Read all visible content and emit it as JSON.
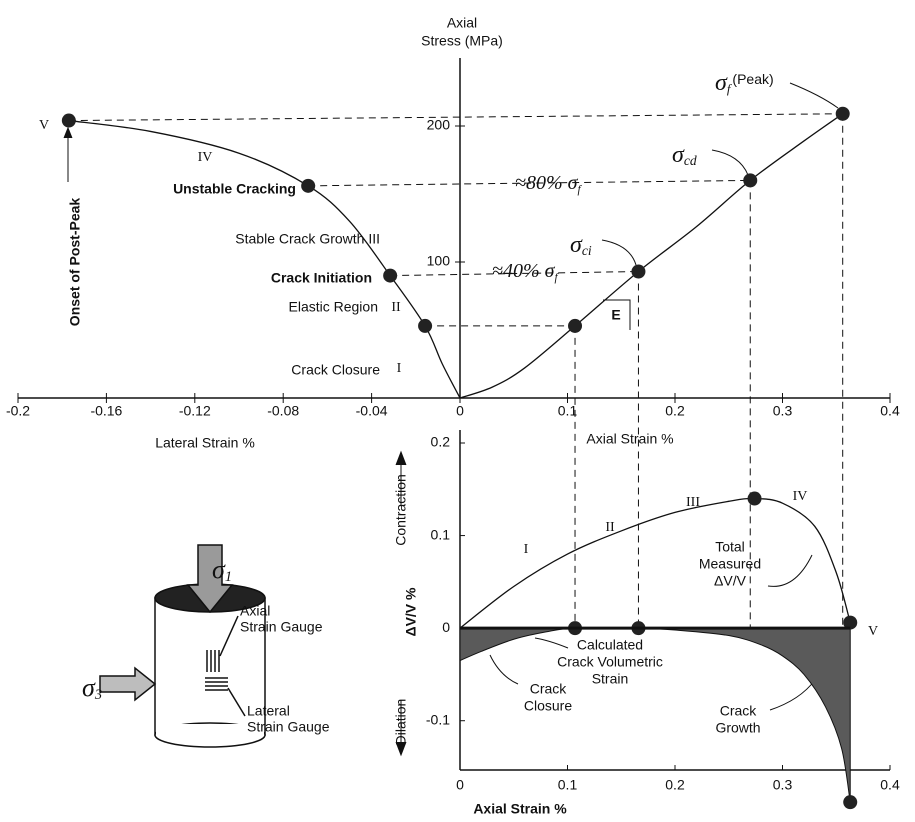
{
  "chart_data": [
    {
      "type": "line",
      "y_label_lines": [
        "Axial",
        "Stress (MPa)"
      ],
      "x_label_lateral": "Lateral Strain %",
      "x_label": "Axial Strain %",
      "xlim_lateral": [
        -0.2,
        0
      ],
      "xticks_lateral": [
        -0.2,
        -0.16,
        -0.12,
        -0.08,
        -0.04
      ],
      "xlim": [
        0,
        0.4
      ],
      "xticks": [
        0,
        0.1,
        0.2,
        0.3,
        0.4
      ],
      "ylim": [
        0,
        250
      ],
      "yticks": [
        100,
        200
      ],
      "series": [
        {
          "axis": "lateral",
          "style": "line",
          "color": "#111111",
          "x": [
            0,
            -0.008,
            -0.0158,
            -0.0316,
            -0.05,
            -0.0687,
            -0.1,
            -0.14,
            -0.177
          ],
          "values": [
            0,
            25,
            53,
            90,
            130,
            156,
            180,
            196,
            204
          ]
        },
        {
          "axis": "lateral",
          "style": "markers",
          "color": "#222222",
          "x": [
            -0.0158,
            -0.0316,
            -0.0687,
            -0.177
          ],
          "values": [
            53,
            90,
            156,
            204
          ]
        },
        {
          "axis": "axial",
          "style": "line",
          "color": "#111111",
          "x": [
            0,
            0.03,
            0.06,
            0.107,
            0.166,
            0.22,
            0.27,
            0.32,
            0.356
          ],
          "values": [
            0,
            8,
            22,
            53,
            93,
            126,
            160,
            189,
            209
          ]
        },
        {
          "axis": "axial",
          "style": "markers",
          "color": "#222222",
          "x": [
            0.107,
            0.166,
            0.27,
            0.356
          ],
          "values": [
            53,
            93,
            160,
            209
          ]
        }
      ],
      "annotations": [
        {
          "text": "V"
        },
        {
          "text": "IV"
        },
        {
          "text": "Unstable Cracking"
        },
        {
          "text": "Stable Crack Growth III"
        },
        {
          "text": "Crack Initiation"
        },
        {
          "text": "Elastic Region"
        },
        {
          "text": "II"
        },
        {
          "text": "Crack Closure"
        },
        {
          "text": "I"
        },
        {
          "text": "Onset of Post-Peak"
        },
        {
          "text": "σ",
          "sub": "f",
          "suffix": "(Peak)"
        },
        {
          "text": "σ",
          "sub": "cd"
        },
        {
          "text": "σ",
          "sub": "ci"
        },
        {
          "text": "≈80% σ",
          "sub": "f"
        },
        {
          "text": "≈40% σ",
          "sub": "f"
        },
        {
          "text": "E"
        }
      ]
    },
    {
      "type": "area",
      "x_label": "Axial Strain %",
      "xlim": [
        0,
        0.4
      ],
      "xticks": [
        0,
        0.1,
        0.2,
        0.3,
        0.4
      ],
      "ylim": [
        -0.15,
        0.2
      ],
      "yticks": [
        -0.1,
        0,
        0.1,
        0.2
      ],
      "series": [
        {
          "style": "line",
          "color": "#111111",
          "x": [
            0,
            0.05,
            0.1,
            0.15,
            0.2,
            0.25,
            0.274,
            0.3,
            0.33,
            0.35,
            0.363
          ],
          "values": [
            0,
            0.045,
            0.08,
            0.105,
            0.125,
            0.137,
            0.14,
            0.135,
            0.11,
            0.06,
            0.006
          ]
        },
        {
          "style": "area",
          "color": "#5a5a5a",
          "x": [
            0,
            0.02,
            0.05,
            0.08,
            0.107,
            0.166,
            0.2,
            0.25,
            0.28,
            0.3,
            0.32,
            0.34,
            0.355,
            0.363
          ],
          "values": [
            -0.035,
            -0.025,
            -0.012,
            -0.004,
            0,
            0,
            -0.002,
            -0.008,
            -0.018,
            -0.03,
            -0.05,
            -0.085,
            -0.13,
            -0.188
          ]
        },
        {
          "style": "markers",
          "color": "#222222",
          "x": [
            0.107,
            0.166,
            0.274,
            0.363,
            0.363
          ],
          "values": [
            0,
            0,
            0.14,
            0.006,
            -0.188
          ]
        }
      ],
      "annotations": [
        {
          "text": "Contraction"
        },
        {
          "text": "Dilation"
        },
        {
          "text": "ΔV/V %"
        },
        {
          "text": "I"
        },
        {
          "text": "II"
        },
        {
          "text": "III"
        },
        {
          "text": "IV"
        },
        {
          "lines": [
            "Total",
            "Measured",
            "ΔV/V"
          ]
        },
        {
          "text": "V"
        },
        {
          "lines": [
            "Calculated",
            "Crack Volumetric",
            "Strain"
          ]
        },
        {
          "lines": [
            "Crack",
            "Closure"
          ]
        },
        {
          "lines": [
            "Crack",
            "Growth"
          ]
        }
      ]
    }
  ],
  "specimen": {
    "labels": [
      {
        "text": "σ",
        "sub": "1"
      },
      {
        "text": "σ",
        "sub": "3"
      },
      {
        "lines": [
          "Axial",
          "Strain Gauge"
        ]
      },
      {
        "lines": [
          "Lateral",
          "Strain Gauge"
        ]
      }
    ]
  }
}
